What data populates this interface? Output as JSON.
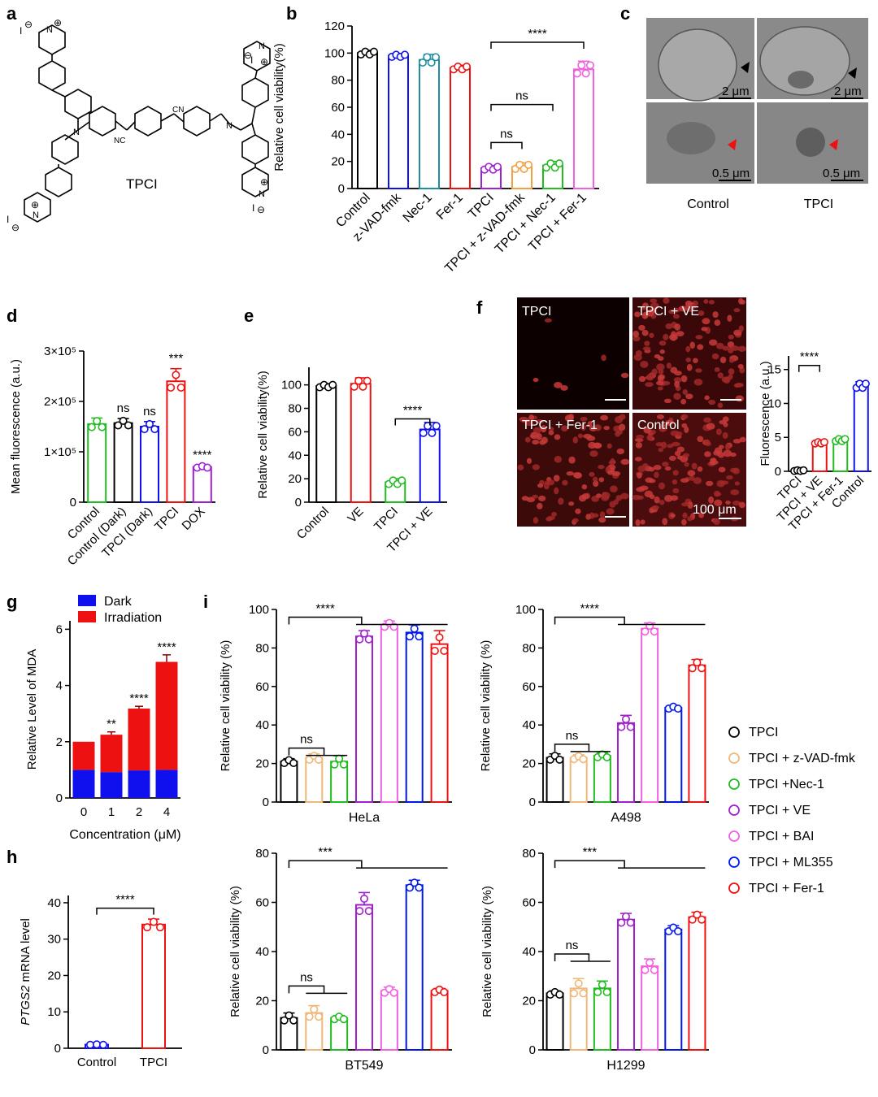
{
  "colors": {
    "black": "#000000",
    "blue": "#1010ee",
    "teal": "#1f8fa0",
    "red": "#ee1111",
    "purple": "#a020d0",
    "orange": "#f0a040",
    "green": "#22bb22",
    "pink": "#f060e0",
    "tan": "#f0b878",
    "dark_blue": "#0018ee",
    "lightgreen": "#33cc33"
  },
  "panel_a": {
    "label": "a",
    "compound": "TPCI",
    "atoms": {
      "n": "N",
      "cn": "CN",
      "nc": "NC",
      "iodide": "I",
      "minus": "⊖",
      "plus": "⊕"
    }
  },
  "panel_c": {
    "label": "c",
    "cols": [
      "Control",
      "TPCI"
    ],
    "scales": [
      "2 μm",
      "2 μm",
      "0.5 μm",
      "0.5 μm"
    ]
  },
  "panel_f": {
    "label": "f",
    "images": [
      "TPCI",
      "TPCI + VE",
      "TPCI + Fer-1",
      "Control"
    ],
    "scale_bar": "100 μm"
  },
  "legend_i": [
    {
      "name": "TPCI",
      "color": "#000000"
    },
    {
      "name": "TPCI + z-VAD-fmk",
      "color": "#f0b878"
    },
    {
      "name": "TPCI +Nec-1",
      "color": "#22bb22"
    },
    {
      "name": "TPCI + VE",
      "color": "#a020d0"
    },
    {
      "name": "TPCI + BAI",
      "color": "#f060e0"
    },
    {
      "name": "TPCI + ML355",
      "color": "#0018ee"
    },
    {
      "name": "TPCI + Fer-1",
      "color": "#ee1111"
    }
  ],
  "chart_data": [
    {
      "id": "b",
      "label": "b",
      "type": "bar",
      "ylabel": "Relative cell viability(%)",
      "ylim": [
        0,
        120
      ],
      "yticks": [
        0,
        20,
        40,
        60,
        80,
        100,
        120
      ],
      "ytick_labels": [
        "0",
        "20",
        "40",
        "60",
        "80",
        "100",
        "120"
      ],
      "categories": [
        "Control",
        "z-VAD-fmk",
        "Nec-1",
        "Fer-1",
        "TPCI",
        "TPCI + z-VAD-fmk",
        "TPCI + Nec-1",
        "TPCI + Fer-1"
      ],
      "values": [
        100,
        98,
        95,
        89,
        15,
        16,
        17,
        88
      ],
      "errors": [
        2,
        1.5,
        4,
        2,
        2,
        3,
        3,
        6
      ],
      "colors": [
        "#000000",
        "#1010ee",
        "#1f8fa0",
        "#ee1111",
        "#a020d0",
        "#f0a040",
        "#22bb22",
        "#f060e0"
      ],
      "annotations": [
        {
          "text": "****",
          "from": 4,
          "to": 7,
          "at": 108
        },
        {
          "text": "ns",
          "from": 4,
          "to": 6,
          "at": 62
        },
        {
          "text": "ns",
          "from": 4,
          "to": 5,
          "at": 34
        }
      ]
    },
    {
      "id": "d",
      "label": "d",
      "type": "bar",
      "ylabel": "Mean fluorescence (a.u.)",
      "ylim": [
        0,
        300000
      ],
      "yticks": [
        0,
        100000,
        200000,
        300000
      ],
      "ytick_labels": [
        "0",
        "1×10⁵",
        "2×10⁵",
        "3×10⁵"
      ],
      "categories": [
        "Control",
        "Control (Dark)",
        "TPCI (Dark)",
        "TPCI",
        "DOX"
      ],
      "values": [
        155000,
        157000,
        150000,
        240000,
        70000
      ],
      "errors": [
        12000,
        9000,
        10000,
        25000,
        3000
      ],
      "colors": [
        "#22bb22",
        "#000000",
        "#1010ee",
        "#ee1111",
        "#a020d0"
      ],
      "bar_labels": [
        "",
        "ns",
        "ns",
        "***",
        "****"
      ]
    },
    {
      "id": "e",
      "label": "e",
      "type": "bar",
      "ylabel": "Relative cell viability(%)",
      "ylim": [
        0,
        115
      ],
      "yticks": [
        0,
        20,
        40,
        60,
        80,
        100
      ],
      "ytick_labels": [
        "0",
        "20",
        "40",
        "60",
        "80",
        "100"
      ],
      "categories": [
        "Control",
        "VE",
        "TPCI",
        "TPCI + VE"
      ],
      "values": [
        99,
        101,
        17,
        62
      ],
      "errors": [
        2,
        5,
        3,
        6
      ],
      "colors": [
        "#000000",
        "#ee1111",
        "#22bb22",
        "#1010ee"
      ],
      "annotations": [
        {
          "text": "****",
          "from": 2,
          "to": 3,
          "at": 71
        }
      ]
    },
    {
      "id": "f",
      "label": "",
      "type": "bar",
      "ylabel": "Fluorescence (a.u.)",
      "ylim": [
        0,
        17
      ],
      "yticks": [
        0,
        5,
        10,
        15
      ],
      "ytick_labels": [
        "0",
        "5",
        "10",
        "15"
      ],
      "categories": [
        "TPCI",
        "TPCI + VE",
        "TPCI + Fer-1",
        "Control"
      ],
      "values": [
        0.1,
        4.2,
        4.6,
        12.6
      ],
      "errors": [
        0.1,
        0.2,
        0.3,
        0.6
      ],
      "colors": [
        "#000000",
        "#ee1111",
        "#22bb22",
        "#1010ee"
      ],
      "annotations": [
        {
          "text": "****",
          "from": 0,
          "to": 1,
          "at": 15.6
        }
      ]
    },
    {
      "id": "g",
      "label": "g",
      "type": "stacked_bar",
      "xlabel": "Concentration (μM)",
      "ylabel": "Relative Level of MDA",
      "ylim": [
        0,
        6.3
      ],
      "yticks": [
        0,
        2,
        4,
        6
      ],
      "ytick_labels": [
        "0",
        "2",
        "4",
        "6"
      ],
      "categories": [
        "0",
        "1",
        "2",
        "4"
      ],
      "series": [
        {
          "name": "Dark",
          "color": "#1010ee",
          "values": [
            1.0,
            0.92,
            0.98,
            1.0
          ],
          "errors": [
            0,
            0.25,
            0.15,
            0.2
          ]
        },
        {
          "name": "Irradiation",
          "color": "#ee1111",
          "values": [
            1.0,
            1.33,
            2.2,
            3.84
          ],
          "errors": [
            0,
            0.1,
            0.08,
            0.25
          ]
        }
      ],
      "bar_labels": [
        "",
        "**",
        "****",
        "****"
      ]
    },
    {
      "id": "h",
      "label": "h",
      "type": "bar",
      "ylabel": "PTGS2 mRNA level",
      "ylabel_italic": "PTGS2",
      "ylabel_rest": " mRNA level",
      "ylim": [
        0,
        42
      ],
      "yticks": [
        0,
        10,
        20,
        30,
        40
      ],
      "ytick_labels": [
        "0",
        "10",
        "20",
        "30",
        "40"
      ],
      "categories": [
        "Control",
        "TPCI"
      ],
      "values": [
        1,
        34
      ],
      "errors": [
        0.1,
        1.5
      ],
      "colors": [
        "#1010ee",
        "#ee1111"
      ],
      "annotations": [
        {
          "text": "****",
          "from": 0,
          "to": 1,
          "at": 38.5
        }
      ]
    },
    {
      "id": "i1",
      "label": "i",
      "type": "bar",
      "title": "HeLa",
      "ylabel": "Relative cell viability (%)",
      "ylim": [
        0,
        100
      ],
      "yticks": [
        0,
        20,
        40,
        60,
        80,
        100
      ],
      "ytick_labels": [
        "0",
        "20",
        "40",
        "60",
        "80",
        "100"
      ],
      "categories": [
        "TPCI",
        "TPCI + z-VAD-fmk",
        "TPCI +Nec-1",
        "TPCI + VE",
        "TPCI + BAI",
        "TPCI + ML355",
        "TPCI + Fer-1"
      ],
      "values": [
        21,
        23,
        21,
        86,
        92,
        88,
        82
      ],
      "errors": [
        1.5,
        2,
        3,
        3,
        2,
        4,
        7
      ],
      "colors": [
        "#000000",
        "#f0b878",
        "#22bb22",
        "#a020d0",
        "#f060e0",
        "#0018ee",
        "#ee1111"
      ],
      "brackets": [
        {
          "text": "****",
          "from": 0,
          "to": [
            3,
            4,
            5,
            6
          ],
          "at": 96
        },
        {
          "text": "ns",
          "from": 0,
          "to": [
            1,
            2
          ],
          "at": 28
        }
      ]
    },
    {
      "id": "i2",
      "label": "",
      "type": "bar",
      "title": "A498",
      "ylabel": "Relative cell viability (%)",
      "ylim": [
        0,
        100
      ],
      "yticks": [
        0,
        20,
        40,
        60,
        80,
        100
      ],
      "ytick_labels": [
        "0",
        "20",
        "40",
        "60",
        "80",
        "100"
      ],
      "categories": [
        "TPCI",
        "TPCI + z-VAD-fmk",
        "TPCI +Nec-1",
        "TPCI + VE",
        "TPCI + BAI",
        "TPCI + ML355",
        "TPCI + Fer-1"
      ],
      "values": [
        23,
        23,
        24,
        41,
        90,
        49,
        71
      ],
      "errors": [
        2,
        1.5,
        1.5,
        4,
        3,
        1,
        3
      ],
      "colors": [
        "#000000",
        "#f0b878",
        "#22bb22",
        "#a020d0",
        "#f060e0",
        "#0018ee",
        "#ee1111"
      ],
      "brackets": [
        {
          "text": "****",
          "from": 0,
          "to": [
            3,
            4,
            5,
            6
          ],
          "at": 96
        },
        {
          "text": "ns",
          "from": 0,
          "to": [
            1,
            2
          ],
          "at": 30
        }
      ]
    },
    {
      "id": "i3",
      "label": "",
      "type": "bar",
      "title": "BT549",
      "ylabel": "Relative cell viability (%)",
      "ylim": [
        0,
        80
      ],
      "yticks": [
        0,
        20,
        40,
        60,
        80
      ],
      "ytick_labels": [
        "0",
        "20",
        "40",
        "60",
        "80"
      ],
      "categories": [
        "TPCI",
        "TPCI + z-VAD-fmk",
        "TPCI +Nec-1",
        "TPCI + VE",
        "TPCI + BAI",
        "TPCI + ML355",
        "TPCI + Fer-1"
      ],
      "values": [
        13,
        15,
        13,
        59,
        24,
        67,
        24
      ],
      "errors": [
        2,
        3,
        1,
        5,
        1.5,
        2,
        1
      ],
      "colors": [
        "#000000",
        "#f0b878",
        "#22bb22",
        "#a020d0",
        "#f060e0",
        "#0018ee",
        "#ee1111"
      ],
      "brackets": [
        {
          "text": "***",
          "from": 0,
          "to": [
            3,
            4,
            5,
            6
          ],
          "at": 77
        },
        {
          "text": "ns",
          "from": 0,
          "to": [
            1,
            2
          ],
          "at": 26
        }
      ]
    },
    {
      "id": "i4",
      "label": "",
      "type": "bar",
      "title": "H1299",
      "ylabel": "Relative cell viability (%)",
      "ylim": [
        0,
        80
      ],
      "yticks": [
        0,
        20,
        40,
        60,
        80
      ],
      "ytick_labels": [
        "0",
        "20",
        "40",
        "60",
        "80"
      ],
      "categories": [
        "TPCI",
        "TPCI + z-VAD-fmk",
        "TPCI +Nec-1",
        "TPCI + VE",
        "TPCI + BAI",
        "TPCI + ML355",
        "TPCI + Fer-1"
      ],
      "values": [
        23,
        25,
        25,
        53,
        34,
        49,
        54
      ],
      "errors": [
        1,
        4,
        3,
        2.5,
        3,
        1.5,
        2
      ],
      "colors": [
        "#000000",
        "#f0b878",
        "#22bb22",
        "#a020d0",
        "#f060e0",
        "#0018ee",
        "#ee1111"
      ],
      "brackets": [
        {
          "text": "***",
          "from": 0,
          "to": [
            3,
            4,
            5,
            6
          ],
          "at": 77
        },
        {
          "text": "ns",
          "from": 0,
          "to": [
            1,
            2
          ],
          "at": 39
        }
      ]
    }
  ]
}
